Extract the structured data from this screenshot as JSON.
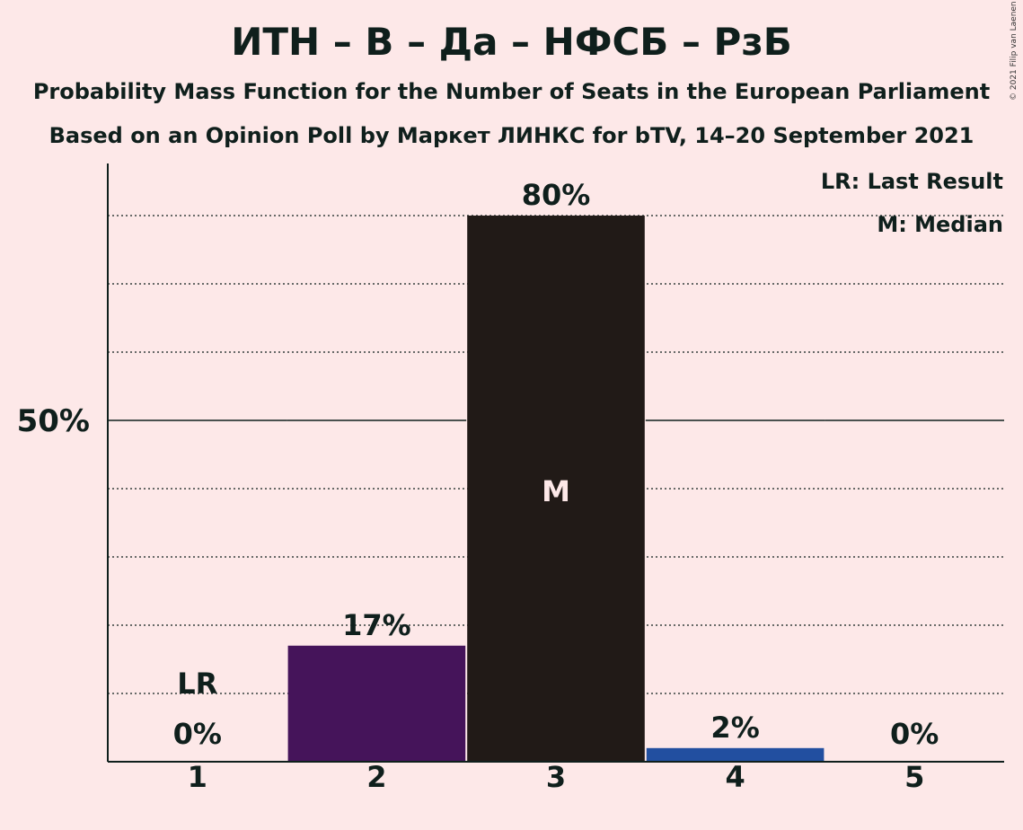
{
  "chart_data": {
    "type": "bar",
    "title": "ИТН – В – Да – НФСБ – РзБ",
    "subtitle_line1": "Probability Mass Function for the Number of Seats in the European Parliament",
    "subtitle_line2": "Based on an Opinion Poll by Маркет ЛИНКС for bTV, 14–20 September 2021",
    "categories": [
      "1",
      "2",
      "3",
      "4",
      "5"
    ],
    "values": [
      0,
      17,
      80,
      2,
      0
    ],
    "value_labels": [
      "0%",
      "17%",
      "80%",
      "2%",
      "0%"
    ],
    "bar_colors": [
      "#6b3fa0",
      "#45145a",
      "#211a17",
      "#224fa0",
      "#6b3fa0"
    ],
    "ylim": [
      0,
      100
    ],
    "y_tick_label": "50%",
    "y_tick_value": 50,
    "gridlines": [
      10,
      20,
      30,
      40,
      60,
      70,
      80
    ],
    "last_result_index": 0,
    "last_result_marker": "LR",
    "median_index": 2,
    "median_marker": "M",
    "legend": [
      "LR: Last Result",
      "M: Median"
    ],
    "legend_position": "top-right"
  },
  "copyright": "© 2021 Filip van Laenen"
}
